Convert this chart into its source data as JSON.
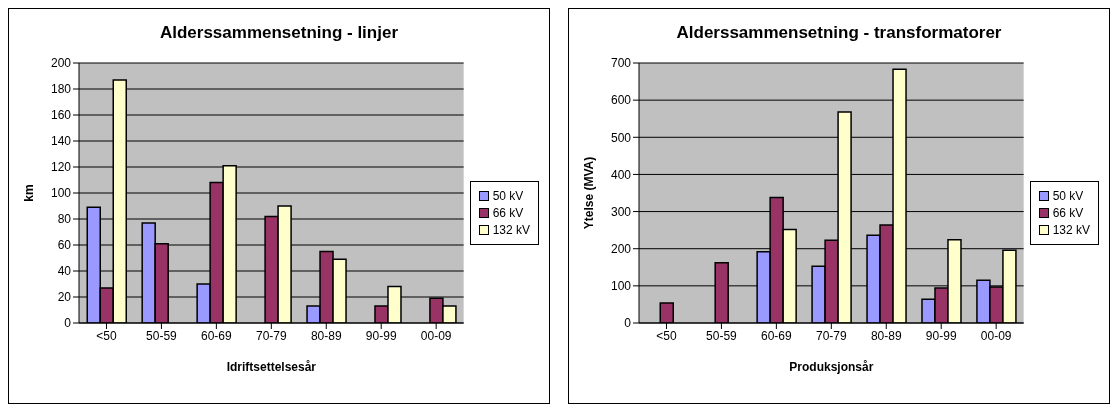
{
  "chart_data": [
    {
      "type": "bar",
      "title": "Alderssammensetning - linjer",
      "xlabel": "Idriftsettelsesår",
      "ylabel": "km",
      "categories": [
        "<50",
        "50-59",
        "60-69",
        "70-79",
        "80-89",
        "90-99",
        "00-09"
      ],
      "series": [
        {
          "name": "50 kV",
          "color": "#9999ff",
          "values": [
            89,
            77,
            30,
            null,
            13,
            null,
            null
          ]
        },
        {
          "name": "66 kV",
          "color": "#993366",
          "values": [
            27,
            61,
            108,
            82,
            55,
            13,
            19
          ]
        },
        {
          "name": "132 kV",
          "color": "#ffffcc",
          "values": [
            187,
            null,
            121,
            90,
            49,
            28,
            13
          ]
        }
      ],
      "ylim": [
        0,
        200
      ],
      "yticks": [
        0,
        20,
        40,
        60,
        80,
        100,
        120,
        140,
        160,
        180,
        200
      ],
      "grid": "y",
      "legend": "right"
    },
    {
      "type": "bar",
      "title": "Alderssammensetning - transformatorer",
      "xlabel": "Produksjonsår",
      "ylabel": "Ytelse (MVA)",
      "categories": [
        "<50",
        "50-59",
        "60-69",
        "70-79",
        "80-89",
        "90-99",
        "00-09"
      ],
      "series": [
        {
          "name": "50 kV",
          "color": "#9999ff",
          "values": [
            null,
            null,
            192,
            153,
            236,
            64,
            115
          ]
        },
        {
          "name": "66 kV",
          "color": "#993366",
          "values": [
            54,
            162,
            338,
            223,
            264,
            94,
            97
          ]
        },
        {
          "name": "132 kV",
          "color": "#ffffcc",
          "values": [
            null,
            null,
            252,
            568,
            683,
            224,
            196
          ]
        }
      ],
      "ylim": [
        0,
        700
      ],
      "yticks": [
        0,
        100,
        200,
        300,
        400,
        500,
        600,
        700
      ],
      "grid": "y",
      "legend": "right"
    }
  ]
}
